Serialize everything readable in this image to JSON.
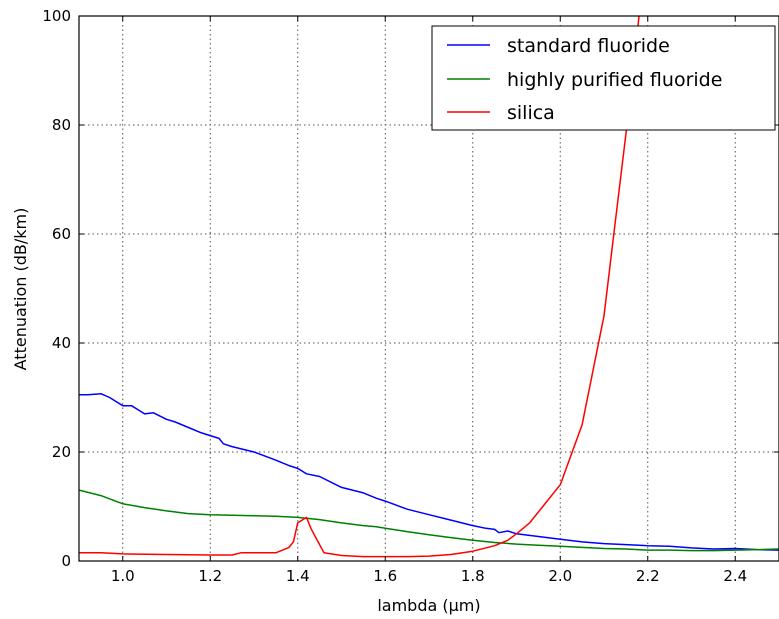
{
  "chart_data": {
    "type": "line",
    "title": "",
    "xlabel": "lambda (µm)",
    "ylabel": "Attenuation (dB/km)",
    "xlim": [
      0.9,
      2.5
    ],
    "ylim": [
      0,
      100
    ],
    "xticks": [
      1.0,
      1.2,
      1.4,
      1.6,
      1.8,
      2.0,
      2.2,
      2.4
    ],
    "xtick_labels": [
      "1.0",
      "1.2",
      "1.4",
      "1.6",
      "1.8",
      "2.0",
      "2.2",
      "2.4"
    ],
    "yticks": [
      0,
      20,
      40,
      60,
      80,
      100
    ],
    "ytick_labels": [
      "0",
      "20",
      "40",
      "60",
      "80",
      "100"
    ],
    "grid": true,
    "legend_position": "top-right",
    "series": [
      {
        "name": "standard fluoride",
        "color": "#0000ff",
        "x": [
          0.9,
          0.92,
          0.95,
          0.97,
          0.99,
          1.0,
          1.02,
          1.04,
          1.05,
          1.07,
          1.1,
          1.12,
          1.15,
          1.18,
          1.2,
          1.22,
          1.23,
          1.25,
          1.3,
          1.35,
          1.38,
          1.4,
          1.42,
          1.45,
          1.5,
          1.55,
          1.58,
          1.6,
          1.65,
          1.7,
          1.75,
          1.8,
          1.83,
          1.85,
          1.86,
          1.88,
          1.9,
          1.95,
          2.0,
          2.05,
          2.1,
          2.15,
          2.2,
          2.25,
          2.3,
          2.35,
          2.4,
          2.45,
          2.5
        ],
        "y": [
          30.5,
          30.5,
          30.7,
          30.0,
          29.0,
          28.5,
          28.5,
          27.5,
          27.0,
          27.2,
          26.0,
          25.5,
          24.5,
          23.5,
          23.0,
          22.5,
          21.5,
          21.0,
          20.0,
          18.5,
          17.5,
          17.0,
          16.0,
          15.5,
          13.5,
          12.5,
          11.5,
          11.0,
          9.5,
          8.5,
          7.5,
          6.5,
          6.0,
          5.8,
          5.2,
          5.5,
          5.0,
          4.5,
          4.0,
          3.5,
          3.2,
          3.0,
          2.8,
          2.7,
          2.4,
          2.2,
          2.3,
          2.1,
          2.0
        ]
      },
      {
        "name": "highly purified fluoride",
        "color": "#008000",
        "x": [
          0.9,
          0.95,
          1.0,
          1.05,
          1.1,
          1.15,
          1.2,
          1.25,
          1.3,
          1.35,
          1.4,
          1.45,
          1.5,
          1.55,
          1.58,
          1.6,
          1.65,
          1.7,
          1.75,
          1.8,
          1.85,
          1.9,
          1.95,
          2.0,
          2.05,
          2.1,
          2.15,
          2.2,
          2.25,
          2.3,
          2.35,
          2.4,
          2.45,
          2.5
        ],
        "y": [
          13.0,
          12.0,
          10.5,
          9.8,
          9.2,
          8.7,
          8.5,
          8.4,
          8.3,
          8.2,
          8.0,
          7.6,
          7.0,
          6.5,
          6.3,
          6.0,
          5.4,
          4.8,
          4.3,
          3.8,
          3.4,
          3.1,
          2.9,
          2.7,
          2.5,
          2.3,
          2.2,
          2.0,
          2.0,
          1.9,
          1.9,
          2.0,
          2.1,
          2.2
        ]
      },
      {
        "name": "silica",
        "color": "#ff0000",
        "x": [
          0.9,
          0.95,
          1.0,
          1.1,
          1.2,
          1.25,
          1.27,
          1.3,
          1.35,
          1.38,
          1.39,
          1.4,
          1.41,
          1.42,
          1.43,
          1.44,
          1.46,
          1.5,
          1.55,
          1.6,
          1.65,
          1.7,
          1.75,
          1.8,
          1.85,
          1.88,
          1.9,
          1.93,
          1.96,
          2.0,
          2.05,
          2.1,
          2.13,
          2.16,
          2.17,
          2.18
        ],
        "y": [
          1.5,
          1.5,
          1.3,
          1.2,
          1.1,
          1.1,
          1.5,
          1.5,
          1.5,
          2.5,
          3.5,
          7.0,
          7.5,
          8.0,
          6.0,
          4.5,
          1.5,
          1.0,
          0.8,
          0.8,
          0.8,
          0.9,
          1.2,
          1.8,
          2.8,
          3.8,
          5.0,
          7.0,
          10.0,
          14.0,
          25.0,
          45.0,
          65.0,
          85.0,
          92.0,
          100.0
        ]
      }
    ]
  }
}
